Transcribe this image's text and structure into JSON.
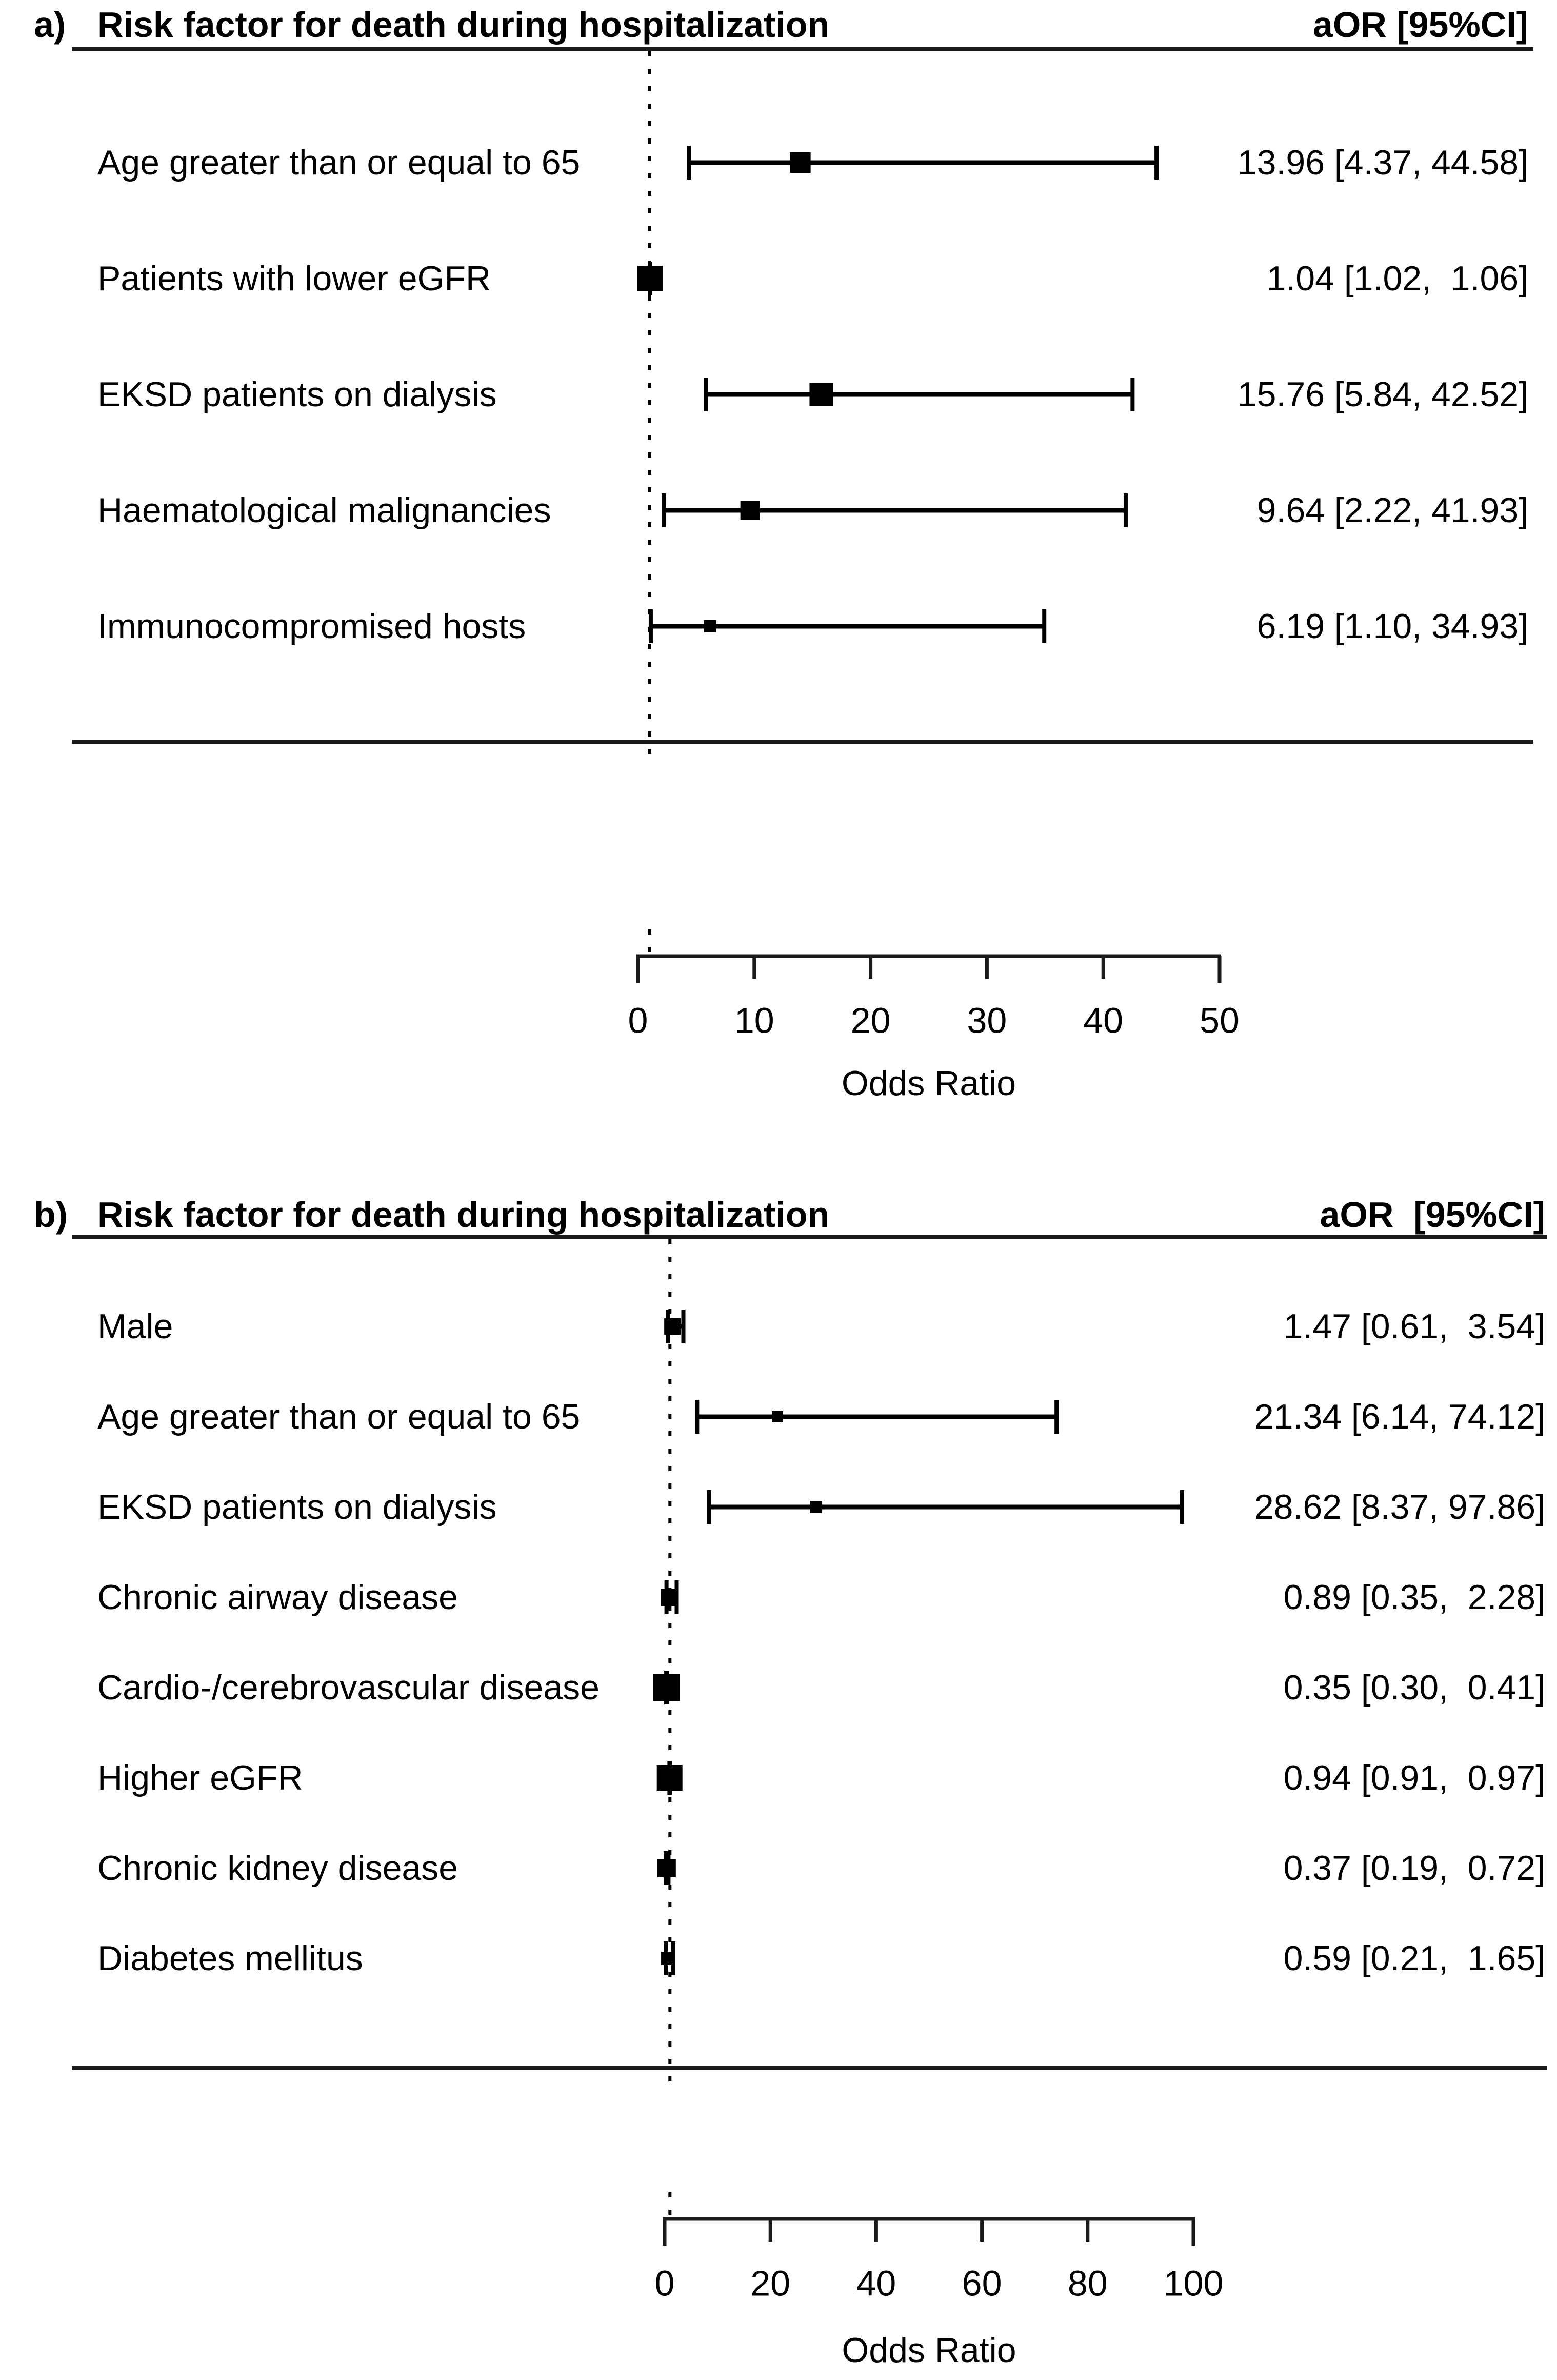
{
  "figure": {
    "description": "Two-panel forest plot of adjusted odds ratios for death during hospitalization",
    "text_color": "#000000",
    "line_color": "#1a1a1a",
    "background": "#ffffff"
  },
  "chart_data": [
    {
      "type": "forest",
      "panel": "a)",
      "title": "Risk factor for death during hospitalization",
      "col_header": "aOR [95%CI]",
      "xlabel": "Odds Ratio",
      "xlim": [
        0,
        50
      ],
      "xticks": [
        0,
        10,
        20,
        30,
        40,
        50
      ],
      "reference_line": 1,
      "grid": false,
      "rows": [
        {
          "label": "Age greater than or equal to 65",
          "aor": 13.96,
          "ci_low": 4.37,
          "ci_high": 44.58,
          "display": "13.96 [4.37, 44.58]",
          "marker_size": 40
        },
        {
          "label": "Patients with lower eGFR",
          "aor": 1.04,
          "ci_low": 1.02,
          "ci_high": 1.06,
          "display": "1.04 [1.02,  1.06]",
          "marker_size": 50
        },
        {
          "label": "EKSD patients on dialysis",
          "aor": 15.76,
          "ci_low": 5.84,
          "ci_high": 42.52,
          "display": "15.76 [5.84, 42.52]",
          "marker_size": 46
        },
        {
          "label": "Haematological malignancies",
          "aor": 9.64,
          "ci_low": 2.22,
          "ci_high": 41.93,
          "display": "9.64 [2.22, 41.93]",
          "marker_size": 38
        },
        {
          "label": "Immunocompromised hosts",
          "aor": 6.19,
          "ci_low": 1.1,
          "ci_high": 34.93,
          "display": "6.19 [1.10, 34.93]",
          "marker_size": 24
        }
      ]
    },
    {
      "type": "forest",
      "panel": "b)",
      "title": "Risk factor for death during hospitalization",
      "col_header": "aOR  [95%CI]",
      "xlabel": "Odds Ratio",
      "xlim": [
        0,
        100
      ],
      "xticks": [
        0,
        20,
        40,
        60,
        80,
        100
      ],
      "reference_line": 1,
      "grid": false,
      "rows": [
        {
          "label": "Male",
          "aor": 1.47,
          "ci_low": 0.61,
          "ci_high": 3.54,
          "display": "1.47 [0.61,  3.54]",
          "marker_size": 32
        },
        {
          "label": "Age greater than or equal to 65",
          "aor": 21.34,
          "ci_low": 6.14,
          "ci_high": 74.12,
          "display": "21.34 [6.14, 74.12]",
          "marker_size": 22
        },
        {
          "label": "EKSD patients on dialysis",
          "aor": 28.62,
          "ci_low": 8.37,
          "ci_high": 97.86,
          "display": "28.62 [8.37, 97.86]",
          "marker_size": 24
        },
        {
          "label": "Chronic airway disease",
          "aor": 0.89,
          "ci_low": 0.35,
          "ci_high": 2.28,
          "display": "0.89 [0.35,  2.28]",
          "marker_size": 34
        },
        {
          "label": "Cardio-/cerebrovascular disease",
          "aor": 0.35,
          "ci_low": 0.3,
          "ci_high": 0.41,
          "display": "0.35 [0.30,  0.41]",
          "marker_size": 52
        },
        {
          "label": "Higher eGFR",
          "aor": 0.94,
          "ci_low": 0.91,
          "ci_high": 0.97,
          "display": "0.94 [0.91,  0.97]",
          "marker_size": 50
        },
        {
          "label": "Chronic kidney disease",
          "aor": 0.37,
          "ci_low": 0.19,
          "ci_high": 0.72,
          "display": "0.37 [0.19,  0.72]",
          "marker_size": 36
        },
        {
          "label": "Diabetes mellitus",
          "aor": 0.59,
          "ci_low": 0.21,
          "ci_high": 1.65,
          "display": "0.59 [0.21,  1.65]",
          "marker_size": 26
        }
      ]
    }
  ]
}
